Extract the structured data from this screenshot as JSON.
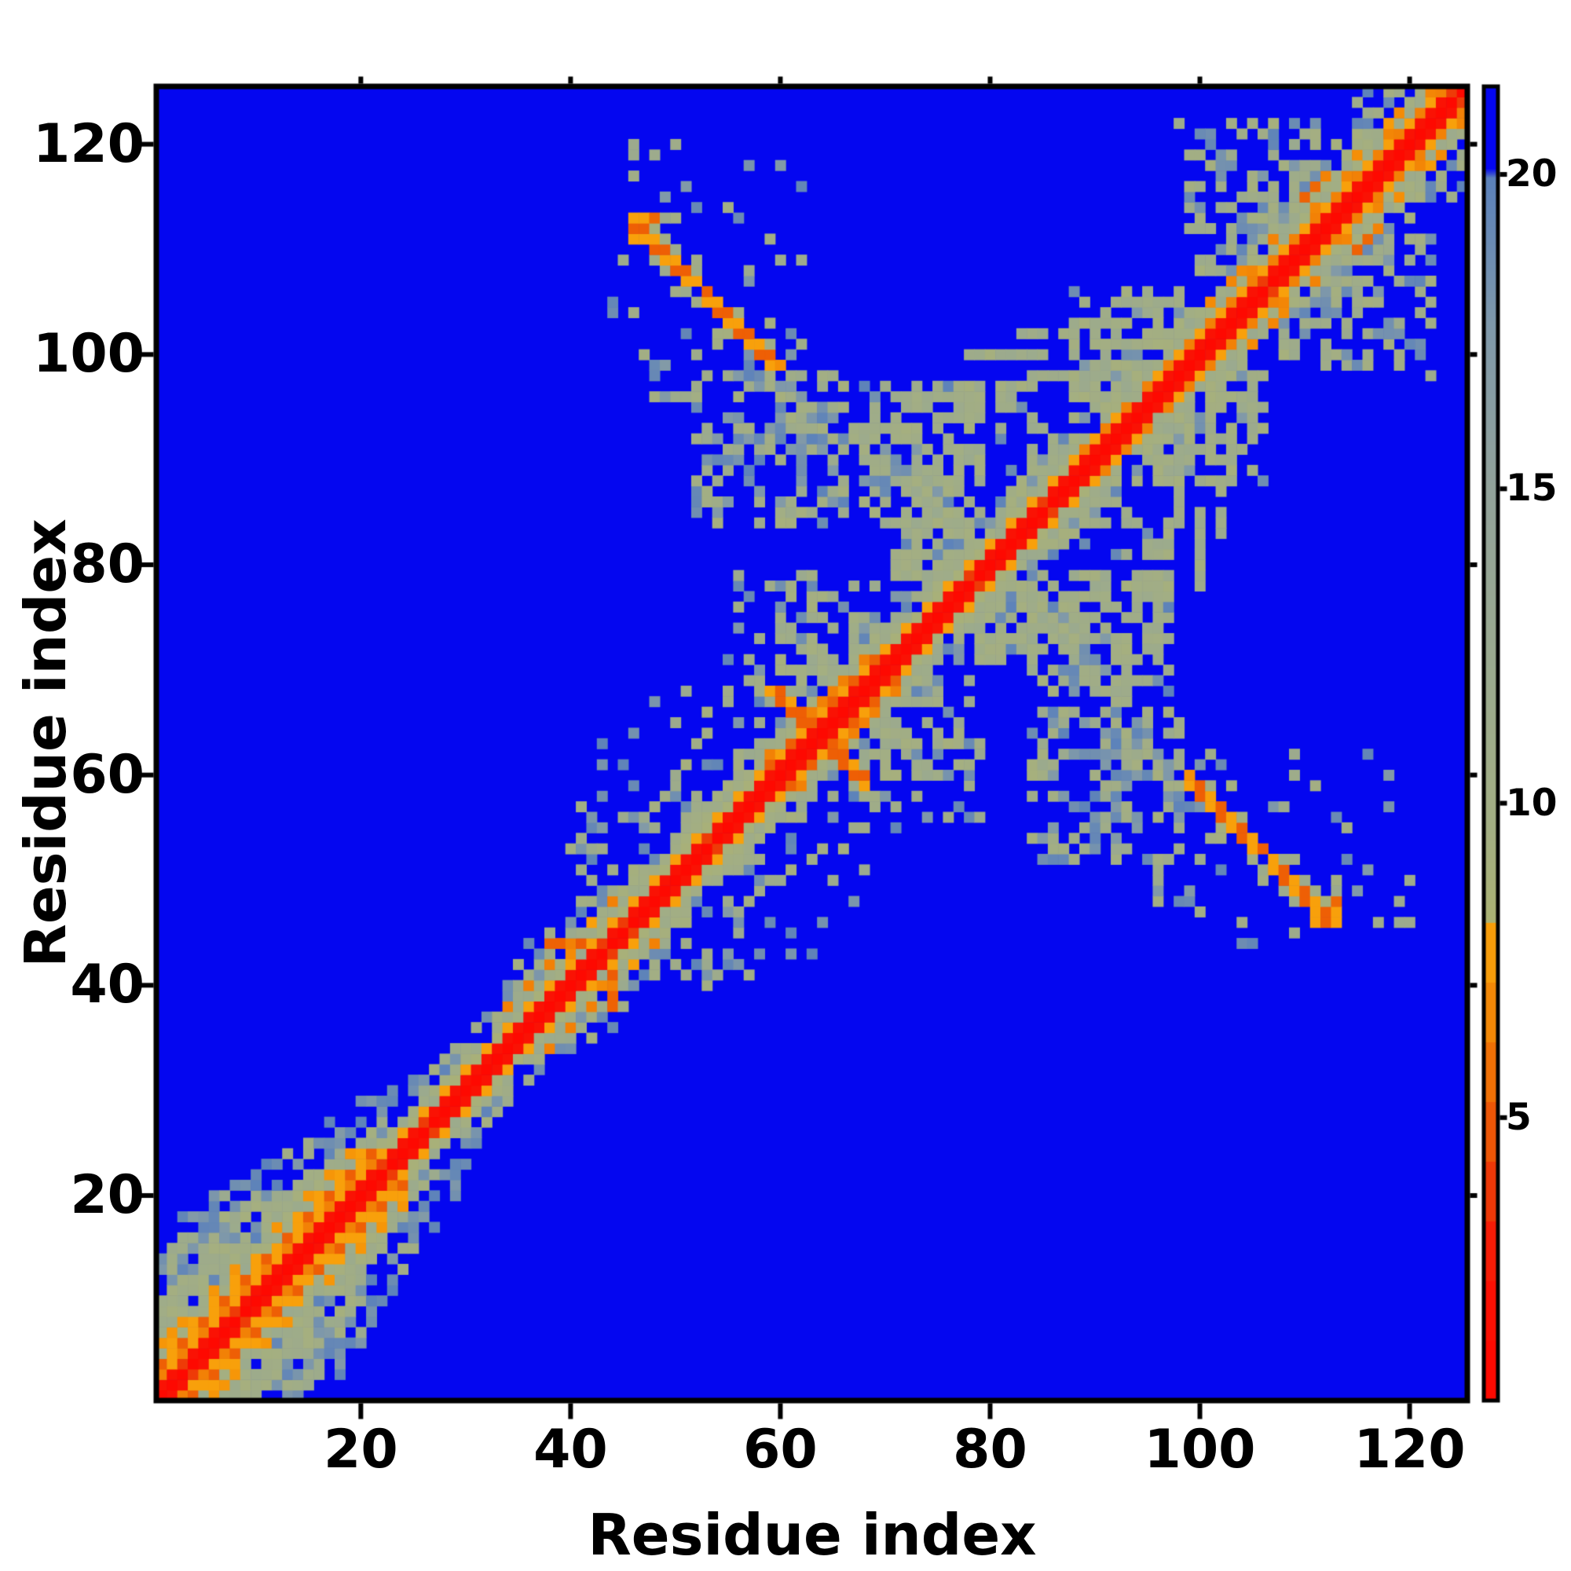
{
  "figure": {
    "background_color": "#ffffff",
    "axis_color": "#000000"
  },
  "chart_data": {
    "type": "heatmap",
    "title": "",
    "xlabel": "Residue index",
    "ylabel": "Residue index",
    "x_ticks": [
      20,
      40,
      60,
      80,
      100,
      120
    ],
    "y_ticks": [
      20,
      40,
      60,
      80,
      100,
      120
    ],
    "axis_range": [
      0.5,
      125.5
    ],
    "matrix_size": 125,
    "grid": false,
    "description": "Symmetric residue-residue distance map of a ~125-residue protein. Red main diagonal (shortest distances), orange i,i+3/i+4 helix bands near the N-terminus (residues 1-21) and around residues 33-45 and 58-69, an orange antiparallel beta-sheet streak pairing residues 46-59 with residues 100-113 (mirrored), an orange anti-diagonal cross at residue ~64, sage-green mid-range (9-15) halos and an X-shaped crossing pattern around residues 70-95, and a dense sage contact cloud along the diagonal for residues ~96-125. Background blue = distances beyond ~20.",
    "colorbar": {
      "ticks": [
        5,
        10,
        15,
        20
      ],
      "vmin": 0.5,
      "vmax": 21.4
    },
    "colors": {
      "background_blue": "#0406f0",
      "steel_blue": "#5b81bb",
      "sage_green": "#a0ac86",
      "orange_bright": "#f8a30b",
      "orange_deep": "#ee6305",
      "red_core": "#fb0a00"
    },
    "colormap_stops": [
      [
        0.5,
        "#ff0700"
      ],
      [
        2.6,
        "#f91405"
      ],
      [
        3.4,
        "#f02a08"
      ],
      [
        4.3,
        "#ec4806"
      ],
      [
        5.3,
        "#ee6505"
      ],
      [
        6.4,
        "#f28106"
      ],
      [
        7.2,
        "#f69407"
      ],
      [
        8.05,
        "#f9a50c"
      ],
      [
        8.12,
        "#abb273"
      ],
      [
        9.6,
        "#a3ae83"
      ],
      [
        12.0,
        "#9baa8e"
      ],
      [
        15.0,
        "#92a29a"
      ],
      [
        17.5,
        "#8099a9"
      ],
      [
        19.95,
        "#5b81bb"
      ],
      [
        20.1,
        "#0406f0"
      ],
      [
        21.4,
        "#0406f0"
      ]
    ],
    "features": {
      "seed": 1337,
      "background_value": 21.3,
      "values": {
        "red_core": 0.8,
        "red_flank": 2.2,
        "orange_bright": 7.8,
        "orange_mid": 6.4,
        "orange_deep": 5.1,
        "sage_base": 9.0,
        "sage_span": 3.2,
        "steel_base": 17.2,
        "steel_span": 2.6
      },
      "regions": [
        {
          "from": 1,
          "to": 21,
          "type": "helix_wide"
        },
        {
          "from": 22,
          "to": 32,
          "type": "narrow"
        },
        {
          "from": 33,
          "to": 45,
          "type": "helix_dots"
        },
        {
          "from": 46,
          "to": 57,
          "type": "narrow"
        },
        {
          "from": 58,
          "to": 69,
          "type": "orange_wide"
        },
        {
          "from": 70,
          "to": 87,
          "type": "narrow"
        },
        {
          "from": 88,
          "to": 125,
          "type": "cloud"
        }
      ],
      "beta_streaks": [
        {
          "x_from": 46,
          "x_to": 59,
          "anti_sum": 159,
          "fringe": 0.35
        }
      ],
      "anti_diagonals": [
        {
          "center": 63.5,
          "half": 4,
          "width": 2,
          "kind": "orange",
          "density": 0.95
        },
        {
          "center": 63.5,
          "half": 7,
          "width": 3,
          "kind": "sage",
          "density": 0.35
        },
        {
          "center": 80.0,
          "half": 13,
          "width": 3,
          "kind": "sage",
          "density": 0.75
        },
        {
          "center": 88.5,
          "half": 8,
          "width": 2,
          "kind": "sage",
          "density": 0.45
        }
      ],
      "blobs": [
        {
          "x1": 52,
          "y1": 84,
          "x2": 66,
          "y2": 98,
          "density": 0.45,
          "steel": 0.35
        },
        {
          "x1": 68,
          "y1": 84,
          "x2": 79,
          "y2": 97,
          "density": 0.5,
          "steel": 0.2
        },
        {
          "x1": 56,
          "y1": 70,
          "x2": 64,
          "y2": 79,
          "density": 0.3,
          "steel": 0.25
        },
        {
          "x1": 60,
          "y1": 68,
          "x2": 70,
          "y2": 78,
          "density": 0.35,
          "steel": 0.15
        },
        {
          "x1": 71,
          "y1": 79,
          "x2": 77,
          "y2": 84,
          "density": 0.55,
          "steel": 0.1
        },
        {
          "x1": 88,
          "y1": 96,
          "x2": 98,
          "y2": 106,
          "density": 0.45,
          "steel": 0.2
        },
        {
          "x1": 112,
          "y1": 98,
          "x2": 122,
          "y2": 111,
          "density": 0.35,
          "steel": 0.3
        },
        {
          "x1": 44,
          "y1": 96,
          "x2": 62,
          "y2": 120,
          "density": 0.1,
          "steel": 0.4
        },
        {
          "x1": 40,
          "y1": 48,
          "x2": 48,
          "y2": 57,
          "density": 0.28,
          "steel": 0.35
        },
        {
          "x1": 48,
          "y1": 58,
          "x2": 58,
          "y2": 68,
          "density": 0.15,
          "steel": 0.3
        },
        {
          "x1": 30,
          "y1": 38,
          "x2": 40,
          "y2": 48,
          "density": 0.1,
          "steel": 0.4
        },
        {
          "x1": 46,
          "y1": 42,
          "x2": 64,
          "y2": 56,
          "density": 0.07,
          "steel": 0.5
        },
        {
          "x1": 73,
          "y1": 88,
          "x2": 84,
          "y2": 97,
          "density": 0.3,
          "steel": 0.2
        }
      ],
      "bars": [
        {
          "x1": 99,
          "x2": 99,
          "y1": 92,
          "y2": 97,
          "steel": false
        },
        {
          "x1": 101,
          "x2": 101,
          "y1": 90,
          "y2": 96,
          "steel": false
        },
        {
          "x1": 103,
          "x2": 103,
          "y1": 88,
          "y2": 93,
          "steel": false
        },
        {
          "x1": 105,
          "x2": 105,
          "y1": 93,
          "y2": 98,
          "steel": false
        },
        {
          "x1": 98,
          "x2": 98,
          "y1": 84,
          "y2": 91,
          "steel": false
        },
        {
          "x1": 100,
          "x2": 100,
          "y1": 78,
          "y2": 85,
          "steel": false
        },
        {
          "x1": 83,
          "x2": 88,
          "y1": 102,
          "y2": 102,
          "steel": false
        },
        {
          "x1": 74,
          "x2": 79,
          "y1": 96,
          "y2": 96,
          "steel": false
        },
        {
          "x1": 88,
          "x2": 93,
          "y1": 62,
          "y2": 62,
          "steel": true
        },
        {
          "x1": 86,
          "x2": 90,
          "y1": 65,
          "y2": 65,
          "steel": true
        },
        {
          "x1": 92,
          "x2": 97,
          "y1": 60,
          "y2": 60,
          "steel": true
        }
      ],
      "dots": [
        [
          38,
          44,
          5.2
        ],
        [
          39,
          44,
          5.2
        ],
        [
          36,
          40,
          6.8
        ],
        [
          38,
          42,
          6.8
        ],
        [
          40,
          44,
          6.8
        ],
        [
          42,
          46,
          7.8
        ],
        [
          110,
          115,
          5.2
        ],
        [
          111,
          116,
          5.4
        ],
        [
          119,
          123,
          6.8
        ],
        [
          118,
          122,
          7.6
        ],
        [
          112,
          117,
          6.5
        ],
        [
          101,
          105,
          6.8
        ],
        [
          104,
          108,
          6.8
        ],
        [
          103,
          107,
          6.6
        ],
        [
          107,
          111,
          6.5
        ],
        [
          115,
          119,
          7.0
        ],
        [
          46,
          112,
          7.8
        ],
        [
          47,
          112,
          5.2
        ],
        [
          47,
          113,
          7.8
        ],
        [
          48,
          113,
          5.4
        ],
        [
          46,
          111,
          7.8
        ],
        [
          60,
          99,
          7.0
        ],
        [
          44,
          41,
          5.0
        ],
        [
          48,
          47,
          4.6
        ],
        [
          65,
          64,
          4.6
        ],
        [
          18,
          15,
          6.2
        ],
        [
          43,
          40,
          6.8
        ]
      ]
    },
    "layout_hints": {
      "legend_position": "none",
      "colorbar_position": "right",
      "tick_style": "outward, bold labels"
    }
  }
}
